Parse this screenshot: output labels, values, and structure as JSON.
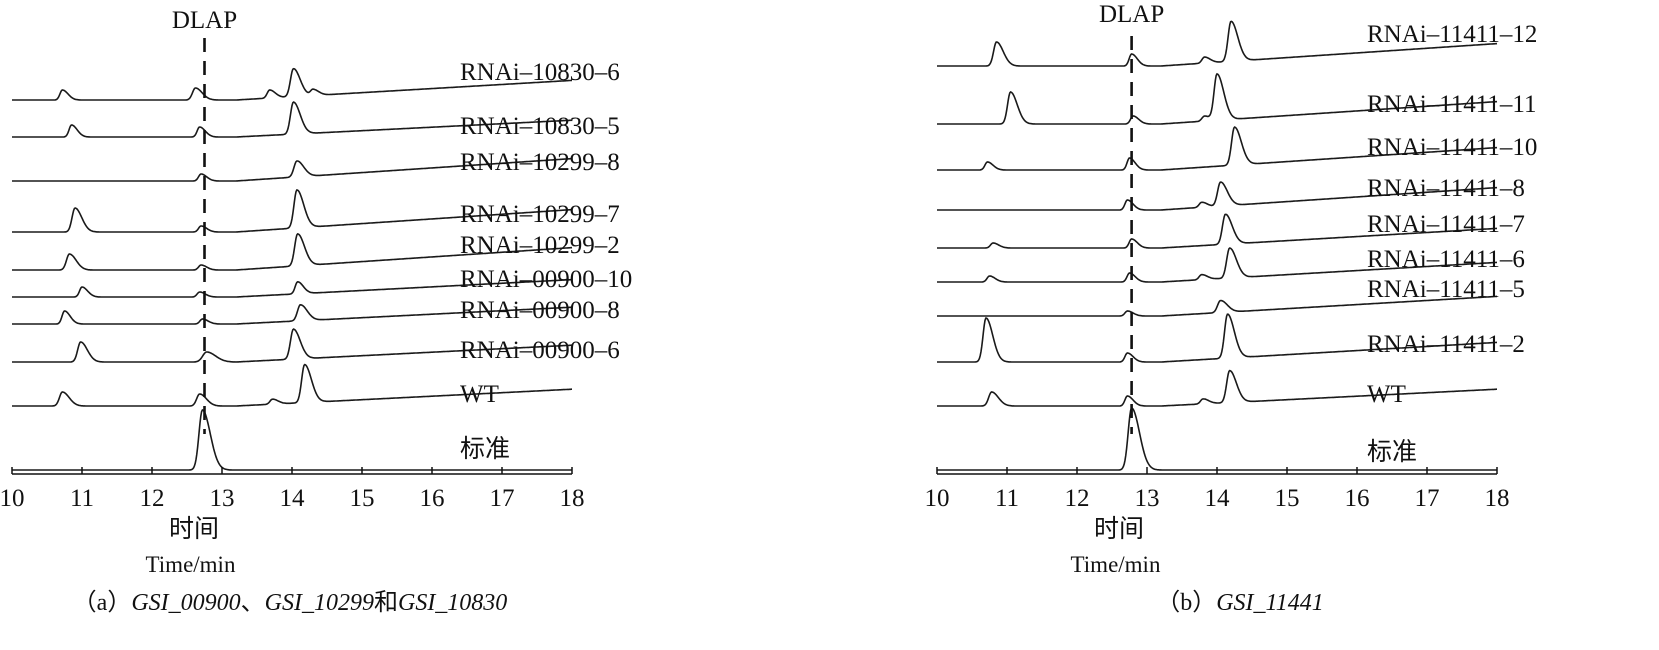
{
  "chart_data": [
    {
      "type": "line",
      "xlim": [
        10,
        18
      ],
      "xticks": [
        "10",
        "11",
        "12",
        "13",
        "14",
        "15",
        "16",
        "17",
        "18"
      ],
      "xlabel_cn": "时间",
      "xlabel_en": "Time/min",
      "marker_label": "DLAP",
      "marker_x": 12.75,
      "caption_prefix": "（a）",
      "caption_genes": [
        "GSI_00900",
        "、",
        "GSI_10299",
        "和",
        "GSI_10830"
      ],
      "series": [
        {
          "name": "RNAi–10830–6",
          "peaks": [
            [
              10.72,
              10,
              0.05
            ],
            [
              12.62,
              12,
              0.06
            ],
            [
              13.68,
              8,
              0.05
            ],
            [
              14.02,
              28,
              0.06
            ],
            [
              14.3,
              6,
              0.05
            ]
          ]
        },
        {
          "name": "RNAi–10830–5",
          "peaks": [
            [
              10.85,
              12,
              0.05
            ],
            [
              12.68,
              10,
              0.05
            ],
            [
              14.02,
              32,
              0.06
            ]
          ]
        },
        {
          "name": "RNAi–10299–8",
          "peaks": [
            [
              12.7,
              7,
              0.05
            ],
            [
              14.07,
              16,
              0.06
            ]
          ]
        },
        {
          "name": "RNAi–10299–7",
          "peaks": [
            [
              10.9,
              24,
              0.06
            ],
            [
              12.7,
              6,
              0.05
            ],
            [
              14.07,
              38,
              0.06
            ]
          ]
        },
        {
          "name": "RNAi–10299–2",
          "peaks": [
            [
              10.82,
              16,
              0.06
            ],
            [
              12.7,
              5,
              0.05
            ],
            [
              14.08,
              32,
              0.06
            ]
          ]
        },
        {
          "name": "RNAi–00900–10",
          "peaks": [
            [
              11.0,
              10,
              0.05
            ],
            [
              12.68,
              5,
              0.05
            ],
            [
              14.08,
              12,
              0.05
            ]
          ]
        },
        {
          "name": "RNAi–00900–8",
          "peaks": [
            [
              10.75,
              13,
              0.05
            ],
            [
              12.72,
              5,
              0.05
            ],
            [
              14.12,
              16,
              0.06
            ]
          ]
        },
        {
          "name": "RNAi–00900–6",
          "peaks": [
            [
              10.98,
              20,
              0.06
            ],
            [
              12.78,
              10,
              0.08
            ],
            [
              14.02,
              30,
              0.06
            ]
          ]
        },
        {
          "name": "WT",
          "peaks": [
            [
              10.72,
              14,
              0.06
            ],
            [
              12.68,
              12,
              0.06
            ],
            [
              13.72,
              5,
              0.05
            ],
            [
              14.18,
              38,
              0.06
            ]
          ]
        },
        {
          "name": "标准",
          "peaks": [
            [
              12.72,
              60,
              0.07
            ]
          ]
        }
      ]
    },
    {
      "type": "line",
      "xlim": [
        10,
        18
      ],
      "xticks": [
        "10",
        "11",
        "12",
        "13",
        "14",
        "15",
        "16",
        "17",
        "18"
      ],
      "xlabel_cn": "时间",
      "xlabel_en": "Time/min",
      "marker_label": "DLAP",
      "marker_x": 12.78,
      "caption_prefix": "（b）",
      "caption_genes": [
        "GSI_11441"
      ],
      "series": [
        {
          "name": "RNAi–11411–12",
          "peaks": [
            [
              10.85,
              24,
              0.06
            ],
            [
              12.78,
              12,
              0.05
            ],
            [
              13.82,
              6,
              0.05
            ],
            [
              14.2,
              40,
              0.06
            ]
          ]
        },
        {
          "name": "RNAi–11411–11",
          "peaks": [
            [
              11.05,
              32,
              0.06
            ],
            [
              12.8,
              8,
              0.05
            ],
            [
              13.82,
              5,
              0.05
            ],
            [
              14.0,
              46,
              0.06
            ]
          ]
        },
        {
          "name": "RNAi–11411–10",
          "peaks": [
            [
              10.72,
              8,
              0.05
            ],
            [
              12.75,
              12,
              0.05
            ],
            [
              14.25,
              38,
              0.06
            ]
          ]
        },
        {
          "name": "RNAi–11411–8",
          "peaks": [
            [
              12.72,
              10,
              0.05
            ],
            [
              13.78,
              5,
              0.05
            ],
            [
              14.05,
              24,
              0.06
            ]
          ]
        },
        {
          "name": "RNAi–11411–7",
          "peaks": [
            [
              10.8,
              5,
              0.05
            ],
            [
              12.78,
              9,
              0.05
            ],
            [
              14.12,
              30,
              0.06
            ]
          ]
        },
        {
          "name": "RNAi–11411–6",
          "peaks": [
            [
              10.75,
              6,
              0.05
            ],
            [
              12.75,
              9,
              0.05
            ],
            [
              13.78,
              5,
              0.05
            ],
            [
              14.18,
              30,
              0.06
            ]
          ]
        },
        {
          "name": "RNAi–11411–5",
          "peaks": [
            [
              12.72,
              5,
              0.05
            ],
            [
              14.05,
              12,
              0.06
            ]
          ]
        },
        {
          "name": "RNAi–11411–2",
          "peaks": [
            [
              10.7,
              44,
              0.06
            ],
            [
              12.72,
              9,
              0.05
            ],
            [
              14.15,
              44,
              0.06
            ]
          ]
        },
        {
          "name": "WT",
          "peaks": [
            [
              10.78,
              14,
              0.06
            ],
            [
              12.72,
              10,
              0.05
            ],
            [
              13.8,
              5,
              0.05
            ],
            [
              14.18,
              32,
              0.06
            ]
          ]
        },
        {
          "name": "标准",
          "peaks": [
            [
              12.78,
              62,
              0.07
            ]
          ]
        }
      ]
    }
  ]
}
